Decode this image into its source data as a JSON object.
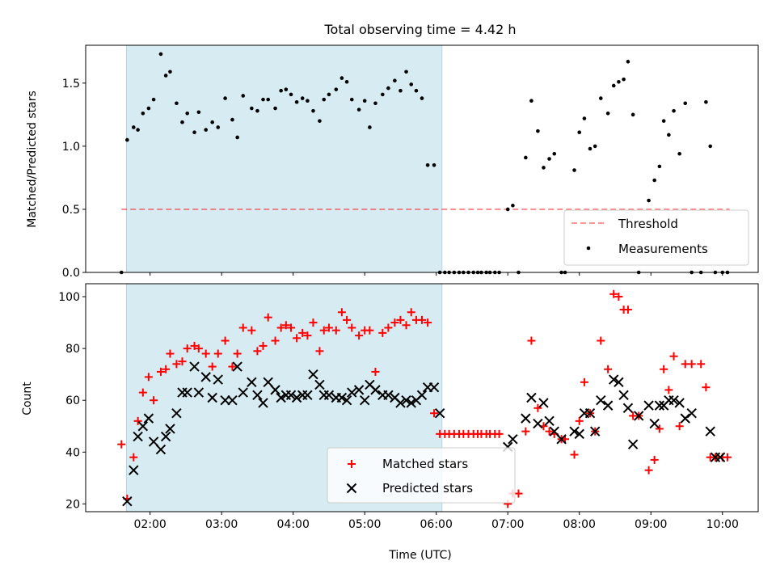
{
  "colors": {
    "shade": "#add8e6",
    "threshold": "#ff0000",
    "matched": "#ff0000",
    "predicted": "#000000",
    "measurement": "#000000"
  },
  "chart_data": [
    {
      "type": "scatter",
      "title": "Total observing time = 4.42 h",
      "xlabel": "",
      "ylabel": "Matched/Predicted stars",
      "xlim": [
        1.1,
        10.5
      ],
      "ylim": [
        0,
        1.8
      ],
      "yticks": [
        "0.0",
        "0.5",
        "1.0",
        "1.5"
      ],
      "shaded_span": [
        1.67,
        6.08
      ],
      "legend_position": "lower-right",
      "threshold": {
        "name": "Threshold",
        "y": 0.5,
        "x_range": [
          1.6,
          10.1
        ]
      },
      "series": [
        {
          "name": "Measurements",
          "x": [
            1.6,
            1.68,
            1.77,
            1.83,
            1.9,
            1.98,
            2.05,
            2.15,
            2.22,
            2.28,
            2.37,
            2.45,
            2.52,
            2.62,
            2.68,
            2.78,
            2.87,
            2.95,
            3.05,
            3.15,
            3.22,
            3.3,
            3.42,
            3.5,
            3.58,
            3.65,
            3.75,
            3.83,
            3.9,
            3.97,
            4.05,
            4.13,
            4.2,
            4.28,
            4.37,
            4.43,
            4.5,
            4.6,
            4.68,
            4.75,
            4.82,
            4.92,
            5.0,
            5.07,
            5.15,
            5.25,
            5.33,
            5.42,
            5.5,
            5.58,
            5.65,
            5.72,
            5.8,
            5.88,
            5.97,
            6.05,
            6.12,
            6.18,
            6.25,
            6.32,
            6.38,
            6.45,
            6.52,
            6.58,
            6.63,
            6.7,
            6.75,
            6.82,
            6.88,
            7.0,
            7.07,
            7.15,
            7.25,
            7.33,
            7.42,
            7.5,
            7.58,
            7.65,
            7.75,
            7.8,
            7.93,
            8.0,
            8.07,
            8.15,
            8.22,
            8.3,
            8.4,
            8.48,
            8.55,
            8.62,
            8.68,
            8.75,
            8.83,
            8.97,
            9.05,
            9.12,
            9.18,
            9.25,
            9.32,
            9.4,
            9.48,
            9.57,
            9.7,
            9.77,
            9.83,
            9.9,
            10.0,
            10.07
          ],
          "y": [
            0.0,
            1.05,
            1.15,
            1.13,
            1.26,
            1.3,
            1.37,
            1.73,
            1.56,
            1.59,
            1.34,
            1.19,
            1.26,
            1.11,
            1.27,
            1.13,
            1.19,
            1.15,
            1.38,
            1.21,
            1.07,
            1.4,
            1.3,
            1.28,
            1.37,
            1.37,
            1.3,
            1.44,
            1.45,
            1.41,
            1.35,
            1.38,
            1.36,
            1.28,
            1.2,
            1.37,
            1.41,
            1.45,
            1.54,
            1.51,
            1.37,
            1.29,
            1.36,
            1.15,
            1.34,
            1.41,
            1.46,
            1.52,
            1.44,
            1.59,
            1.49,
            1.44,
            1.38,
            0.85,
            0.85,
            0.0,
            0.0,
            0.0,
            0.0,
            0.0,
            0.0,
            0.0,
            0.0,
            0.0,
            0.0,
            0.0,
            0.0,
            0.0,
            0.0,
            0.5,
            0.53,
            0.0,
            0.91,
            1.36,
            1.12,
            0.83,
            0.9,
            0.94,
            0.0,
            0.0,
            0.81,
            1.11,
            1.22,
            0.98,
            1.0,
            1.38,
            1.26,
            1.48,
            1.51,
            1.53,
            1.67,
            1.25,
            0.0,
            0.57,
            0.73,
            0.84,
            1.2,
            1.09,
            1.28,
            0.94,
            1.34,
            0.0,
            0.0,
            1.35,
            1.0,
            0.0,
            0.0,
            0.0
          ]
        }
      ]
    },
    {
      "type": "scatter",
      "title": "",
      "xlabel": "Time (UTC)",
      "ylabel": "Count",
      "xlim": [
        1.1,
        10.5
      ],
      "ylim": [
        17,
        105
      ],
      "xticks": [
        "02:00",
        "03:00",
        "04:00",
        "05:00",
        "06:00",
        "07:00",
        "08:00",
        "09:00",
        "10:00"
      ],
      "xtick_values": [
        2,
        3,
        4,
        5,
        6,
        7,
        8,
        9,
        10
      ],
      "yticks": [
        "20",
        "40",
        "60",
        "80",
        "100"
      ],
      "ytick_values": [
        20,
        40,
        60,
        80,
        100
      ],
      "shaded_span": [
        1.67,
        6.08
      ],
      "legend_position": "lower-center",
      "series": [
        {
          "name": "Matched stars",
          "marker": "+",
          "x": [
            1.6,
            1.68,
            1.77,
            1.83,
            1.9,
            1.98,
            2.05,
            2.15,
            2.22,
            2.28,
            2.37,
            2.45,
            2.52,
            2.62,
            2.68,
            2.78,
            2.87,
            2.95,
            3.05,
            3.15,
            3.22,
            3.3,
            3.42,
            3.5,
            3.58,
            3.65,
            3.75,
            3.83,
            3.9,
            3.97,
            4.05,
            4.13,
            4.2,
            4.28,
            4.37,
            4.43,
            4.5,
            4.6,
            4.68,
            4.75,
            4.82,
            4.92,
            5.0,
            5.07,
            5.15,
            5.25,
            5.33,
            5.42,
            5.5,
            5.58,
            5.65,
            5.72,
            5.8,
            5.88,
            5.97,
            6.05,
            6.12,
            6.18,
            6.25,
            6.32,
            6.38,
            6.45,
            6.52,
            6.58,
            6.63,
            6.7,
            6.75,
            6.82,
            6.88,
            7.0,
            7.07,
            7.15,
            7.25,
            7.33,
            7.42,
            7.5,
            7.58,
            7.65,
            7.75,
            7.8,
            7.93,
            8.0,
            8.07,
            8.15,
            8.22,
            8.3,
            8.4,
            8.48,
            8.55,
            8.62,
            8.68,
            8.75,
            8.83,
            8.97,
            9.05,
            9.12,
            9.18,
            9.25,
            9.32,
            9.4,
            9.48,
            9.57,
            9.7,
            9.77,
            9.83,
            9.9,
            10.0,
            10.07
          ],
          "y": [
            43,
            22,
            38,
            52,
            63,
            69,
            60,
            71,
            72,
            78,
            74,
            75,
            80,
            81,
            80,
            78,
            73,
            78,
            83,
            73,
            78,
            88,
            87,
            79,
            81,
            92,
            83,
            88,
            89,
            88,
            84,
            86,
            85,
            90,
            79,
            87,
            88,
            87,
            94,
            91,
            88,
            85,
            87,
            87,
            71,
            86,
            88,
            90,
            91,
            89,
            94,
            91,
            91,
            90,
            55,
            47,
            47,
            47,
            47,
            47,
            47,
            47,
            47,
            47,
            47,
            47,
            47,
            47,
            47,
            20,
            24,
            24,
            48,
            83,
            57,
            50,
            48,
            47,
            45,
            45,
            39,
            52,
            67,
            55,
            48,
            83,
            72,
            101,
            100,
            95,
            95,
            54,
            54,
            33,
            37,
            49,
            72,
            64,
            77,
            50,
            74,
            74,
            74,
            65,
            38,
            38,
            38,
            38
          ]
        },
        {
          "name": "Predicted stars",
          "marker": "x",
          "x": [
            1.68,
            1.77,
            1.83,
            1.9,
            1.98,
            2.05,
            2.15,
            2.22,
            2.28,
            2.37,
            2.45,
            2.52,
            2.62,
            2.68,
            2.78,
            2.87,
            2.95,
            3.05,
            3.15,
            3.22,
            3.3,
            3.42,
            3.5,
            3.58,
            3.65,
            3.75,
            3.83,
            3.9,
            3.97,
            4.05,
            4.13,
            4.2,
            4.28,
            4.37,
            4.43,
            4.5,
            4.6,
            4.68,
            4.75,
            4.82,
            4.92,
            5.0,
            5.07,
            5.15,
            5.25,
            5.33,
            5.42,
            5.5,
            5.58,
            5.65,
            5.72,
            5.8,
            5.88,
            5.97,
            6.05,
            7.0,
            7.07,
            7.25,
            7.33,
            7.42,
            7.5,
            7.58,
            7.65,
            7.75,
            7.93,
            8.0,
            8.07,
            8.15,
            8.22,
            8.3,
            8.4,
            8.48,
            8.55,
            8.62,
            8.68,
            8.75,
            8.83,
            8.97,
            9.05,
            9.12,
            9.18,
            9.25,
            9.32,
            9.4,
            9.48,
            9.57,
            9.83,
            9.9,
            9.97
          ],
          "y": [
            21,
            33,
            46,
            50,
            53,
            44,
            41,
            46,
            49,
            55,
            63,
            63,
            73,
            63,
            69,
            61,
            68,
            60,
            60,
            73,
            63,
            67,
            62,
            59,
            67,
            64,
            61,
            62,
            62,
            61,
            62,
            62,
            70,
            66,
            62,
            62,
            61,
            61,
            60,
            63,
            64,
            60,
            66,
            64,
            62,
            62,
            61,
            59,
            60,
            59,
            60,
            62,
            65,
            65,
            55,
            42,
            45,
            53,
            61,
            51,
            59,
            52,
            48,
            45,
            48,
            47,
            55,
            55,
            48,
            60,
            58,
            68,
            67,
            62,
            57,
            43,
            54,
            58,
            51,
            58,
            58,
            60,
            60,
            59,
            53,
            55,
            48,
            38,
            38
          ]
        }
      ]
    }
  ]
}
